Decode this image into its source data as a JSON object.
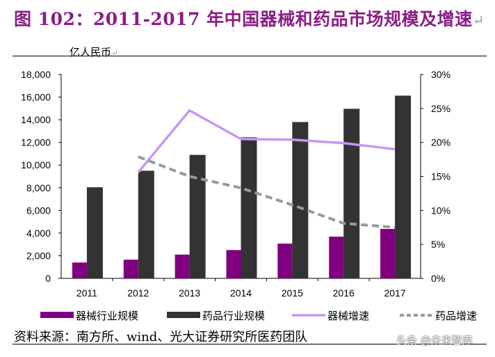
{
  "title": "图 102：2011-2017 年中国器械和药品市场规模及增速",
  "title_mark": "↵",
  "unit_label": "亿人民币",
  "unit_mark": "↵",
  "source": "资料来源：南方所、wind、光大证券研究所医药团队",
  "watermark": "头条 @未来智库",
  "chart_data": {
    "type": "bar",
    "categories": [
      "2011",
      "2012",
      "2013",
      "2014",
      "2015",
      "2016",
      "2017"
    ],
    "ylabel": "亿人民币",
    "ylim": [
      0,
      18000
    ],
    "yticks": [
      "0",
      "2,000",
      "4,000",
      "6,000",
      "8,000",
      "10,000",
      "12,000",
      "14,000",
      "16,000",
      "18,000"
    ],
    "y2lim": [
      0,
      30
    ],
    "y2ticks": [
      "0%",
      "5%",
      "10%",
      "15%",
      "20%",
      "25%",
      "30%"
    ],
    "grid": false,
    "legend_position": "bottom",
    "series": [
      {
        "name": "器械行业规模",
        "type": "bar",
        "axis": "left",
        "color": "#800080",
        "values": [
          1400,
          1650,
          2100,
          2500,
          3070,
          3680,
          4360
        ]
      },
      {
        "name": "药品行业规模",
        "type": "bar",
        "axis": "left",
        "color": "#333333",
        "values": [
          8040,
          9500,
          10900,
          12450,
          13800,
          14970,
          16130
        ]
      },
      {
        "name": "器械增速",
        "type": "line",
        "axis": "right",
        "color": "#c896f5",
        "dash": false,
        "values": [
          null,
          15.6,
          24.7,
          20.5,
          20.4,
          19.9,
          19.0
        ]
      },
      {
        "name": "药品增速",
        "type": "line",
        "axis": "right",
        "color": "#999999",
        "dash": true,
        "values": [
          null,
          17.9,
          15.0,
          13.3,
          10.8,
          8.1,
          7.5
        ]
      }
    ]
  }
}
